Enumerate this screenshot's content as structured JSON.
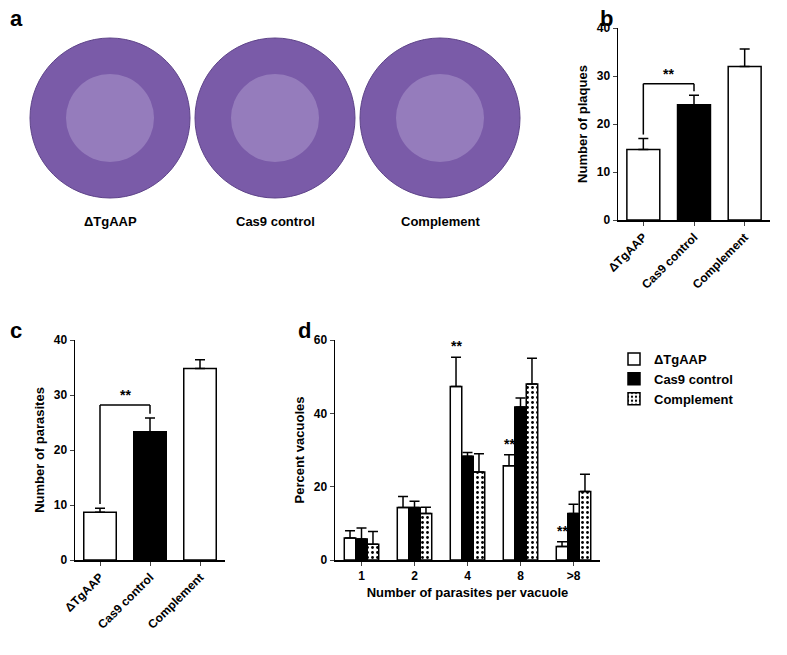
{
  "image_panel": {
    "title": "a",
    "labels": [
      "ΔTgAAP",
      "Cas9 control",
      "Complement"
    ]
  },
  "chart_data": [
    {
      "type": "bar",
      "title": "b",
      "y_label": "Number of plaques",
      "categories": [
        "ΔTgAAP",
        "Cas9 control",
        "Complement"
      ],
      "values": [
        14.7,
        24,
        32
      ],
      "errors": [
        2.3,
        2,
        3.6
      ],
      "colors": [
        "#ffffff",
        "#000000",
        "#ffffff"
      ],
      "ylim": [
        0,
        40
      ],
      "yticks": [
        0,
        10,
        20,
        30,
        40
      ],
      "grid": false,
      "annotations": [
        {
          "text": "**",
          "between": [
            "ΔTgAAP",
            "Cas9 control"
          ]
        }
      ]
    },
    {
      "type": "bar",
      "title": "c",
      "y_label": "Number of parasites",
      "categories": [
        "ΔTgAAP",
        "Cas9 control",
        "Complement"
      ],
      "values": [
        8.7,
        23.3,
        34.8
      ],
      "errors": [
        0.7,
        2.5,
        1.6
      ],
      "colors": [
        "#ffffff",
        "#000000",
        "#ffffff"
      ],
      "ylim": [
        0,
        40
      ],
      "yticks": [
        0,
        10,
        20,
        30,
        40
      ],
      "grid": false,
      "annotations": [
        {
          "text": "**",
          "between": [
            "ΔTgAAP",
            "Cas9 control"
          ]
        }
      ]
    },
    {
      "type": "bar",
      "title": "d",
      "x_label": "Number of parasites per vacuole",
      "y_label": "Percent vacuoles",
      "categories": [
        "1",
        "2",
        "4",
        "8",
        ">8"
      ],
      "series": [
        {
          "name": "ΔTgAAP",
          "color": "#ffffff",
          "values": [
            6,
            14.3,
            47.3,
            25.7,
            3.7
          ],
          "errors": [
            2,
            3,
            8,
            3,
            1.3
          ]
        },
        {
          "name": "Cas9 control",
          "color": "#000000",
          "values": [
            5.7,
            14.3,
            28.3,
            41.7,
            12.7
          ],
          "errors": [
            3,
            1.7,
            1,
            2.5,
            2.5
          ]
        },
        {
          "name": "Complement",
          "color": "#ffffff",
          "marker": "dotted",
          "values": [
            4.3,
            12.7,
            24,
            48,
            18.7
          ],
          "errors": [
            3.5,
            1.7,
            5,
            7,
            4.7
          ]
        }
      ],
      "ylim": [
        0,
        60
      ],
      "yticks": [
        0,
        20,
        40,
        60
      ],
      "grid": false,
      "legend": "right",
      "annotations": [
        {
          "text": "**",
          "category": "4",
          "series": "ΔTgAAP"
        },
        {
          "text": "**",
          "category": "8",
          "series": "ΔTgAAP"
        },
        {
          "text": "**",
          "category": ">8",
          "series": "ΔTgAAP"
        }
      ]
    }
  ]
}
